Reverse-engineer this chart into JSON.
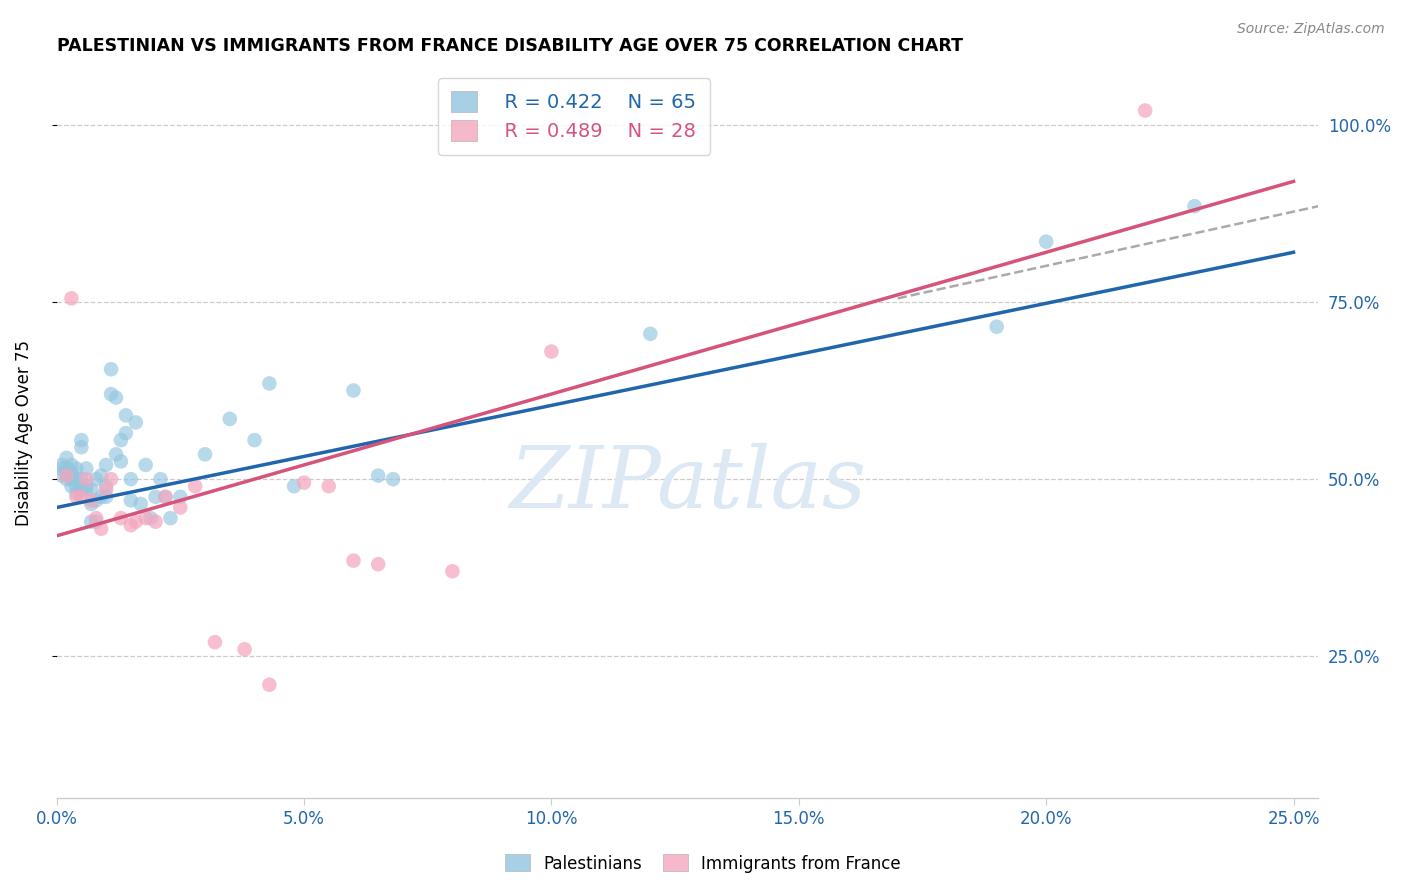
{
  "title": "PALESTINIAN VS IMMIGRANTS FROM FRANCE DISABILITY AGE OVER 75 CORRELATION CHART",
  "source": "Source: ZipAtlas.com",
  "xlim": [
    0.0,
    0.255
  ],
  "ylim": [
    0.05,
    1.08
  ],
  "legend_blue_r": "R = 0.422",
  "legend_blue_n": "N = 65",
  "legend_pink_r": "R = 0.489",
  "legend_pink_n": "N = 28",
  "blue_color": "#92c5de",
  "pink_color": "#f4a6be",
  "blue_line_color": "#2166ac",
  "pink_line_color": "#d6537a",
  "watermark_color": "#dce9f5",
  "grid_color": "#cccccc",
  "xtick_color": "#2166ac",
  "ytick_color": "#2166ac",
  "ylabel": "Disability Age Over 75",
  "xticks": [
    0.0,
    0.05,
    0.1,
    0.15,
    0.2,
    0.25
  ],
  "xtick_labels": [
    "0.0%",
    "5.0%",
    "10.0%",
    "15.0%",
    "20.0%",
    "25.0%"
  ],
  "yticks": [
    0.25,
    0.5,
    0.75,
    1.0
  ],
  "ytick_labels": [
    "25.0%",
    "50.0%",
    "75.0%",
    "100.0%"
  ],
  "blue_line": {
    "x0": 0.0,
    "y0": 0.46,
    "x1": 0.25,
    "y1": 0.82
  },
  "pink_line": {
    "x0": 0.0,
    "y0": 0.42,
    "x1": 0.25,
    "y1": 0.92
  },
  "dash_line": {
    "x0": 0.17,
    "y0": 0.755,
    "x1": 0.255,
    "y1": 0.885
  },
  "palestinians_x": [
    0.001,
    0.001,
    0.001,
    0.002,
    0.002,
    0.002,
    0.002,
    0.003,
    0.003,
    0.003,
    0.003,
    0.003,
    0.004,
    0.004,
    0.004,
    0.004,
    0.005,
    0.005,
    0.005,
    0.005,
    0.006,
    0.006,
    0.006,
    0.007,
    0.007,
    0.007,
    0.008,
    0.008,
    0.008,
    0.009,
    0.009,
    0.01,
    0.01,
    0.01,
    0.011,
    0.011,
    0.012,
    0.012,
    0.013,
    0.013,
    0.014,
    0.014,
    0.015,
    0.015,
    0.016,
    0.017,
    0.018,
    0.019,
    0.02,
    0.021,
    0.022,
    0.023,
    0.025,
    0.03,
    0.035,
    0.04,
    0.043,
    0.048,
    0.06,
    0.065,
    0.068,
    0.12,
    0.19,
    0.2,
    0.23
  ],
  "palestinians_y": [
    0.505,
    0.515,
    0.52,
    0.5,
    0.51,
    0.53,
    0.515,
    0.5,
    0.49,
    0.51,
    0.52,
    0.505,
    0.5,
    0.49,
    0.515,
    0.48,
    0.555,
    0.545,
    0.5,
    0.485,
    0.49,
    0.515,
    0.485,
    0.44,
    0.465,
    0.485,
    0.44,
    0.47,
    0.5,
    0.475,
    0.505,
    0.49,
    0.52,
    0.475,
    0.62,
    0.655,
    0.615,
    0.535,
    0.555,
    0.525,
    0.565,
    0.59,
    0.5,
    0.47,
    0.58,
    0.465,
    0.52,
    0.445,
    0.475,
    0.5,
    0.475,
    0.445,
    0.475,
    0.535,
    0.585,
    0.555,
    0.635,
    0.49,
    0.625,
    0.505,
    0.5,
    0.705,
    0.715,
    0.835,
    0.885
  ],
  "france_x": [
    0.002,
    0.003,
    0.004,
    0.005,
    0.006,
    0.007,
    0.008,
    0.009,
    0.01,
    0.011,
    0.013,
    0.015,
    0.016,
    0.018,
    0.02,
    0.022,
    0.025,
    0.028,
    0.032,
    0.038,
    0.043,
    0.05,
    0.055,
    0.06,
    0.065,
    0.08,
    0.1,
    0.22
  ],
  "france_y": [
    0.505,
    0.755,
    0.475,
    0.475,
    0.5,
    0.47,
    0.445,
    0.43,
    0.485,
    0.5,
    0.445,
    0.435,
    0.44,
    0.445,
    0.44,
    0.475,
    0.46,
    0.49,
    0.27,
    0.26,
    0.21,
    0.495,
    0.49,
    0.385,
    0.38,
    0.37,
    0.68,
    1.02
  ]
}
